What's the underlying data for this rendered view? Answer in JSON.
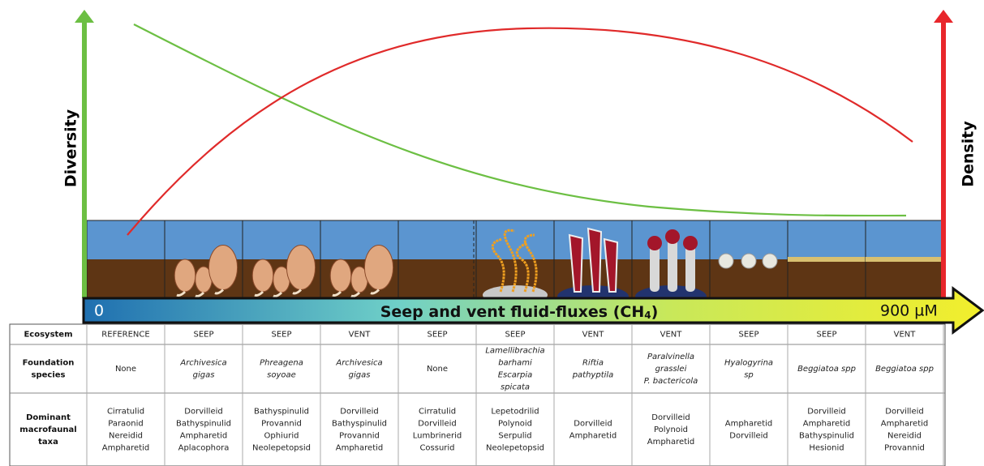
{
  "axes": {
    "left_label": "Diversity",
    "right_label": "Density"
  },
  "gradient": {
    "start": "0",
    "label": "Seep and vent fluid-fluxes (CH",
    "label_sub": "4",
    "label_end": ")",
    "end": "900 µM"
  },
  "table": {
    "rows": [
      {
        "header": [
          "Ecosystem"
        ],
        "cells": [
          [
            "REFERENCE"
          ],
          [
            "SEEP"
          ],
          [
            "SEEP"
          ],
          [
            "VENT"
          ],
          [
            "SEEP"
          ],
          [
            "SEEP"
          ],
          [
            "VENT"
          ],
          [
            "VENT"
          ],
          [
            "SEEP"
          ],
          [
            "SEEP"
          ],
          [
            "VENT"
          ]
        ],
        "italic": [
          false,
          false,
          false,
          false,
          false,
          false,
          false,
          false,
          false,
          false,
          false
        ]
      },
      {
        "header": [
          "Foundation",
          "species"
        ],
        "cells": [
          [
            "None"
          ],
          [
            "Archivesica",
            "gigas"
          ],
          [
            "Phreagena",
            "soyoae"
          ],
          [
            "Archivesica",
            "gigas"
          ],
          [
            "None"
          ],
          [
            "Lamellibrachia",
            "barhami",
            "Escarpia",
            "spicata"
          ],
          [
            "Riftia",
            "pathyptila"
          ],
          [
            "Paralvinella",
            "grasslei",
            "P. bactericola"
          ],
          [
            "Hyalogyrina",
            "sp"
          ],
          [
            "Beggiatoa spp"
          ],
          [
            "Beggiatoa spp"
          ]
        ],
        "italic": [
          false,
          true,
          true,
          true,
          false,
          true,
          true,
          true,
          true,
          true,
          true
        ]
      },
      {
        "header": [
          "Dominant",
          "macrofaunal",
          "taxa"
        ],
        "cells": [
          [
            "Cirratulid",
            "Paraonid",
            "Nereidid",
            "Ampharetid"
          ],
          [
            "Dorvilleid",
            "Bathyspinulid",
            "Ampharetid",
            "Aplacophora"
          ],
          [
            "Bathyspinulid",
            "Provannid",
            "Ophiurid",
            "Neolepetopsid"
          ],
          [
            "Dorvilleid",
            "Bathyspinulid",
            "Provannid",
            "Ampharetid"
          ],
          [
            "Cirratulid",
            "Dorvilleid",
            "Lumbrinerid",
            "Cossurid"
          ],
          [
            "Lepetodrilid",
            "Polynoid",
            "Serpulid",
            "Neolepetopsid"
          ],
          [
            "Dorvilleid",
            "Ampharetid"
          ],
          [
            "Dorvilleid",
            "Polynoid",
            "Ampharetid"
          ],
          [
            "Ampharetid",
            "Dorvilleid"
          ],
          [
            "Dorvilleid",
            "Ampharetid",
            "Bathyspinulid",
            "Hesionid"
          ],
          [
            "Dorvilleid",
            "Ampharetid",
            "Nereidid",
            "Provannid"
          ]
        ],
        "italic": [
          false,
          false,
          false,
          false,
          false,
          false,
          false,
          false,
          false,
          false,
          false
        ]
      }
    ]
  }
}
